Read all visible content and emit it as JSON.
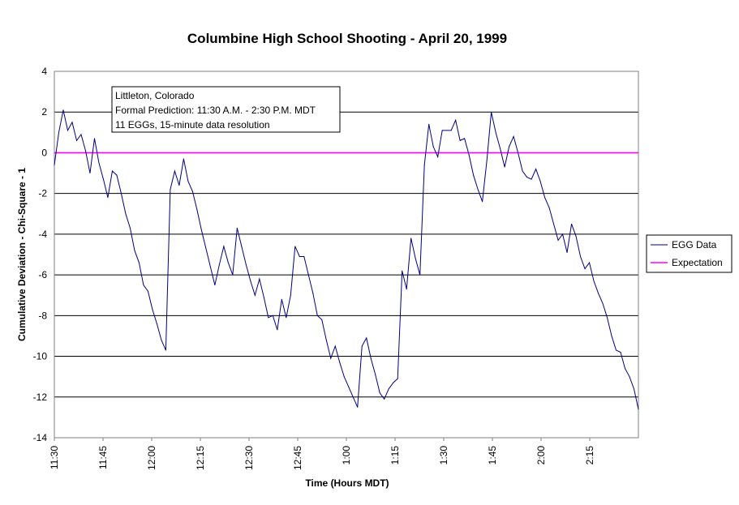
{
  "chart_data": {
    "type": "line",
    "title": "Columbine High School Shooting - April 20, 1999",
    "xlabel": "Time (Hours MDT)",
    "ylabel": "Cumulative Deviation - Chi-Square - 1",
    "ylim": [
      -14,
      4
    ],
    "yticks": [
      4,
      2,
      0,
      -2,
      -4,
      -6,
      -8,
      -10,
      -12,
      -14
    ],
    "x_range_minutes": [
      0,
      180
    ],
    "xticks": [
      {
        "label": "11:30",
        "minutes": 0
      },
      {
        "label": "11:45",
        "minutes": 15
      },
      {
        "label": "12:00",
        "minutes": 30
      },
      {
        "label": "12:15",
        "minutes": 45
      },
      {
        "label": "12:30",
        "minutes": 60
      },
      {
        "label": "12:45",
        "minutes": 75
      },
      {
        "label": "1:00",
        "minutes": 90
      },
      {
        "label": "1:15",
        "minutes": 105
      },
      {
        "label": "1:30",
        "minutes": 120
      },
      {
        "label": "1:45",
        "minutes": 135
      },
      {
        "label": "2:00",
        "minutes": 150
      },
      {
        "label": "2:15",
        "minutes": 165
      }
    ],
    "grid": "horizontal",
    "legend_position": "right",
    "annotation": [
      "Littleton, Colorado",
      "Formal Prediction: 11:30 A.M. - 2:30 P.M. MDT",
      "11 EGGs, 15-minute data resolution"
    ],
    "series": [
      {
        "name": "EGG Data",
        "color": "#000080",
        "values": [
          -0.6,
          1.0,
          2.1,
          1.1,
          1.5,
          0.6,
          0.9,
          0.1,
          -1.0,
          0.7,
          -0.5,
          -1.3,
          -2.2,
          -0.9,
          -1.1,
          -2.0,
          -3.0,
          -3.7,
          -4.8,
          -5.4,
          -6.5,
          -6.8,
          -7.7,
          -8.4,
          -9.2,
          -9.7,
          -1.8,
          -0.9,
          -1.6,
          -0.3,
          -1.4,
          -1.9,
          -2.8,
          -3.8,
          -4.7,
          -5.6,
          -6.5,
          -5.5,
          -4.6,
          -5.4,
          -6.0,
          -3.7,
          -4.6,
          -5.5,
          -6.3,
          -7.0,
          -6.2,
          -7.1,
          -8.1,
          -8.0,
          -8.7,
          -7.2,
          -8.1,
          -7.0,
          -4.6,
          -5.1,
          -5.1,
          -6.0,
          -6.9,
          -8.0,
          -8.2,
          -9.2,
          -10.1,
          -9.5,
          -10.3,
          -11.0,
          -11.5,
          -12.0,
          -12.5,
          -9.5,
          -9.1,
          -10.1,
          -10.9,
          -11.8,
          -12.1,
          -11.6,
          -11.3,
          -11.1,
          -5.8,
          -6.7,
          -4.2,
          -5.2,
          -6.0,
          -0.6,
          1.4,
          0.3,
          -0.2,
          1.1,
          1.1,
          1.1,
          1.6,
          0.6,
          0.7,
          -0.1,
          -1.1,
          -1.8,
          -2.4,
          -0.4,
          2.0,
          1.0,
          0.2,
          -0.7,
          0.3,
          0.8,
          0.0,
          -0.9,
          -1.2,
          -1.3,
          -0.8,
          -1.4,
          -2.2,
          -2.7,
          -3.5,
          -4.3,
          -4.0,
          -4.9,
          -3.5,
          -4.1,
          -5.1,
          -5.7,
          -5.4,
          -6.3,
          -6.9,
          -7.4,
          -8.1,
          -9.0,
          -9.7,
          -9.8,
          -10.6,
          -11.0,
          -11.6,
          -12.6
        ]
      },
      {
        "name": "Expectation",
        "color": "#ff00ff",
        "values": [
          0,
          0
        ]
      }
    ]
  }
}
